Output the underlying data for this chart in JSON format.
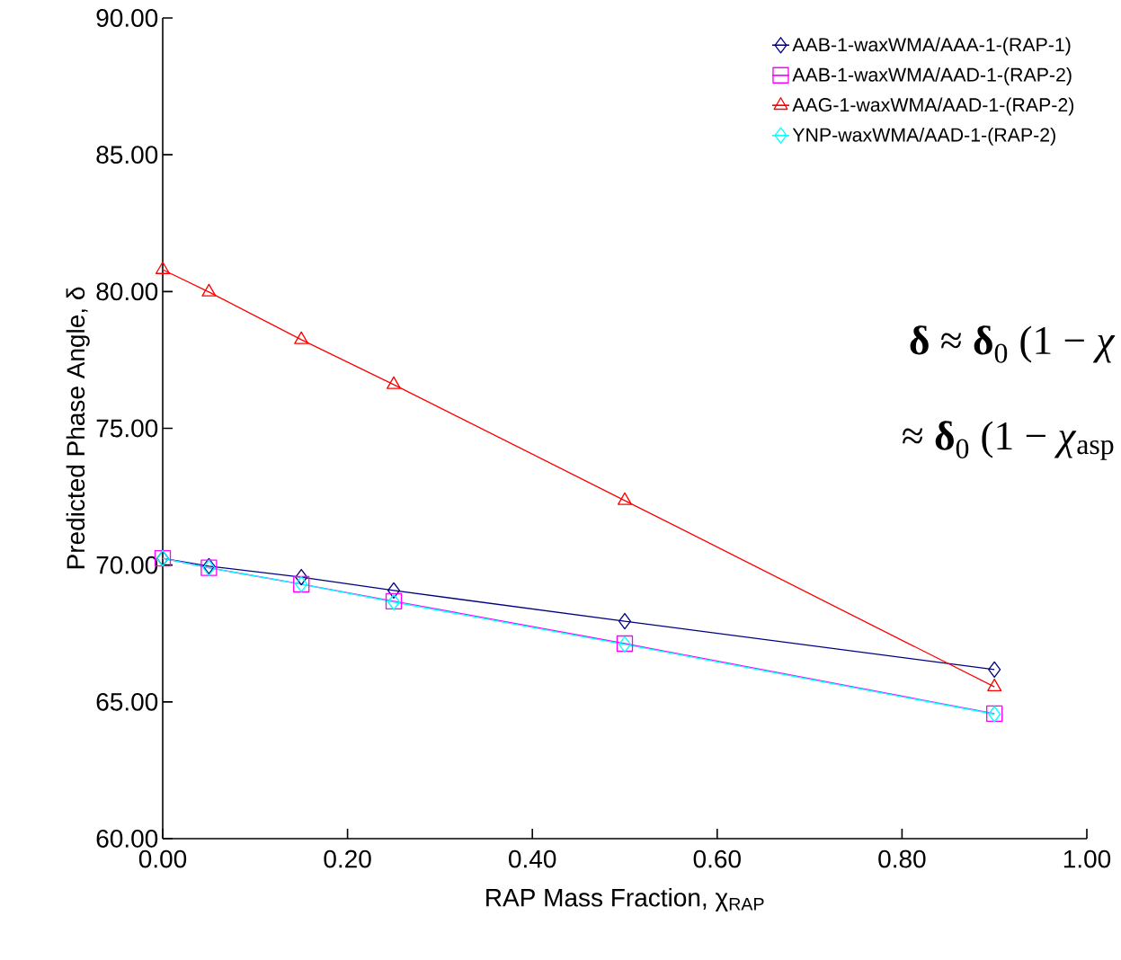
{
  "chart_data": {
    "type": "line",
    "xlabel": "RAP Mass Fraction, χ$_{RAP}$",
    "ylabel": "Predicted Phase Angle, δ",
    "x": [
      0,
      0.05,
      0.15,
      0.25,
      0.5,
      0.9
    ],
    "series": [
      {
        "name": "AAB-1-waxWMA/AAA-1-(RAP-1)",
        "color": "#000080",
        "marker": "diamond",
        "values": [
          70.25,
          69.96,
          69.56,
          69.07,
          67.95,
          66.18
        ]
      },
      {
        "name": "AAB-1-waxWMA/AAD-1-(RAP-2)",
        "color": "#ff00ff",
        "marker": "square",
        "values": [
          70.25,
          69.9,
          69.3,
          68.68,
          67.13,
          64.57
        ]
      },
      {
        "name": "AAG-1-waxWMA/AAD-1-(RAP-2)",
        "color": "#ff0000",
        "marker": "triangle",
        "values": [
          80.8,
          79.98,
          78.24,
          76.6,
          72.36,
          65.55
        ]
      },
      {
        "name": "YNP-waxWMA/AAD-1-(RAP-2)",
        "color": "#00ffff",
        "marker": "diamond",
        "values": [
          70.25,
          69.9,
          69.3,
          68.65,
          67.1,
          64.55
        ]
      }
    ],
    "xlim": [
      0,
      1
    ],
    "ylim": [
      60,
      90
    ],
    "xticks": [
      {
        "value": 0,
        "label": "0.00"
      },
      {
        "value": 0.2,
        "label": "0.20"
      },
      {
        "value": 0.4,
        "label": "0.40"
      },
      {
        "value": 0.6,
        "label": "0.60"
      },
      {
        "value": 0.8,
        "label": "0.80"
      },
      {
        "value": 1,
        "label": "1.00"
      }
    ],
    "yticks": [
      {
        "value": 60,
        "label": "60.00"
      },
      {
        "value": 65,
        "label": "65.00"
      },
      {
        "value": 70,
        "label": "70.00"
      },
      {
        "value": 75,
        "label": "75.00"
      },
      {
        "value": 80,
        "label": "80.00"
      },
      {
        "value": 85,
        "label": "85.00"
      },
      {
        "value": 90,
        "label": "90.00"
      }
    ],
    "annotations": [
      "**δ** ≈ **δ**$_{0}$ (1 − *χ*",
      "≈ **δ**$_{0}$ (1 − *χ*$_{asp}$"
    ],
    "legend": "top right",
    "grid": false,
    "line_style": "solid"
  }
}
